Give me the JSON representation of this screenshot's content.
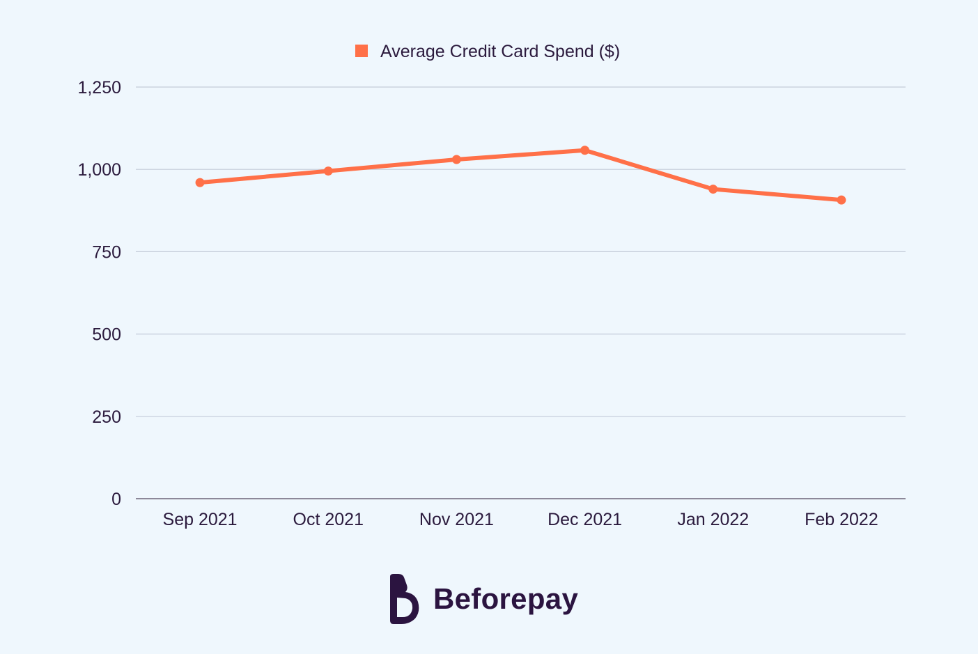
{
  "chart_data": {
    "type": "line",
    "categories": [
      "Sep 2021",
      "Oct 2021",
      "Nov 2021",
      "Dec 2021",
      "Jan 2022",
      "Feb 2022"
    ],
    "series": [
      {
        "name": "Average Credit Card Spend ($)",
        "values": [
          960,
          995,
          1030,
          1058,
          940,
          907
        ],
        "color": "#ff7048"
      }
    ],
    "ylim": [
      0,
      1250
    ],
    "yticks": [
      0,
      250,
      500,
      750,
      1000,
      1250
    ],
    "ytick_labels": [
      "0",
      "250",
      "500",
      "750",
      "1,000",
      "1,250"
    ],
    "grid": true,
    "legend_position": "top-center"
  },
  "brand": {
    "name": "Beforepay",
    "logo_icon": "beforepay-b-icon",
    "color": "#2b1440"
  }
}
